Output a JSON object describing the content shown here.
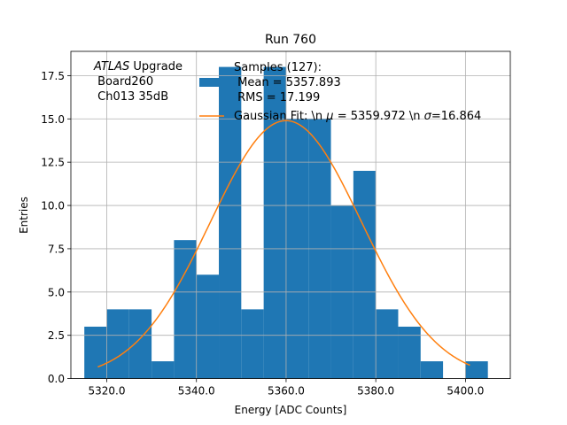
{
  "chart_data": {
    "type": "bar",
    "title": "Run 760",
    "xlabel": "Energy [ADC Counts]",
    "ylabel": "Entries",
    "xlim": [
      5312,
      5410
    ],
    "ylim": [
      0,
      18.9
    ],
    "grid": true,
    "legend_position": "top-right",
    "x_ticks": [
      5320,
      5340,
      5360,
      5380,
      5400
    ],
    "x_tick_labels": [
      "5320.0",
      "5340.0",
      "5360.0",
      "5380.0",
      "5400.0"
    ],
    "y_ticks": [
      0,
      2.5,
      5,
      7.5,
      10,
      12.5,
      15,
      17.5
    ],
    "y_tick_labels": [
      "0.0",
      "2.5",
      "5.0",
      "7.5",
      "10.0",
      "12.5",
      "15.0",
      "17.5"
    ],
    "bin_edges": [
      5315,
      5320,
      5325,
      5330,
      5335,
      5340,
      5345,
      5350,
      5355,
      5360,
      5365,
      5370,
      5375,
      5380,
      5385,
      5390,
      5395,
      5400,
      5405
    ],
    "counts": [
      3,
      4,
      4,
      1,
      8,
      6,
      18,
      4,
      18,
      15,
      15,
      10,
      12,
      4,
      3,
      1,
      0,
      1
    ],
    "histogram_color": "#1f77b4",
    "fit": {
      "type": "gaussian",
      "mu": 5359.972,
      "sigma": 16.864,
      "amplitude": 14.9,
      "x_range": [
        5318,
        5401
      ],
      "color": "#ff7f0e"
    },
    "annotation": {
      "line1_italic": "ATLAS",
      "line1_rest": " Upgrade",
      "line2": " Board260",
      "line3": " Ch013 35dB"
    },
    "legend": {
      "histogram_line1": "Samples (127):",
      "histogram_line2": " Mean = 5357.893",
      "histogram_line3": " RMS = 17.199",
      "fit_prefix": "Gaussian Fit: \\n ",
      "fit_mu_symbol": "μ",
      "fit_middle": " = 5359.972 \\n ",
      "fit_sigma_symbol": "σ",
      "fit_suffix": "=16.864"
    }
  }
}
